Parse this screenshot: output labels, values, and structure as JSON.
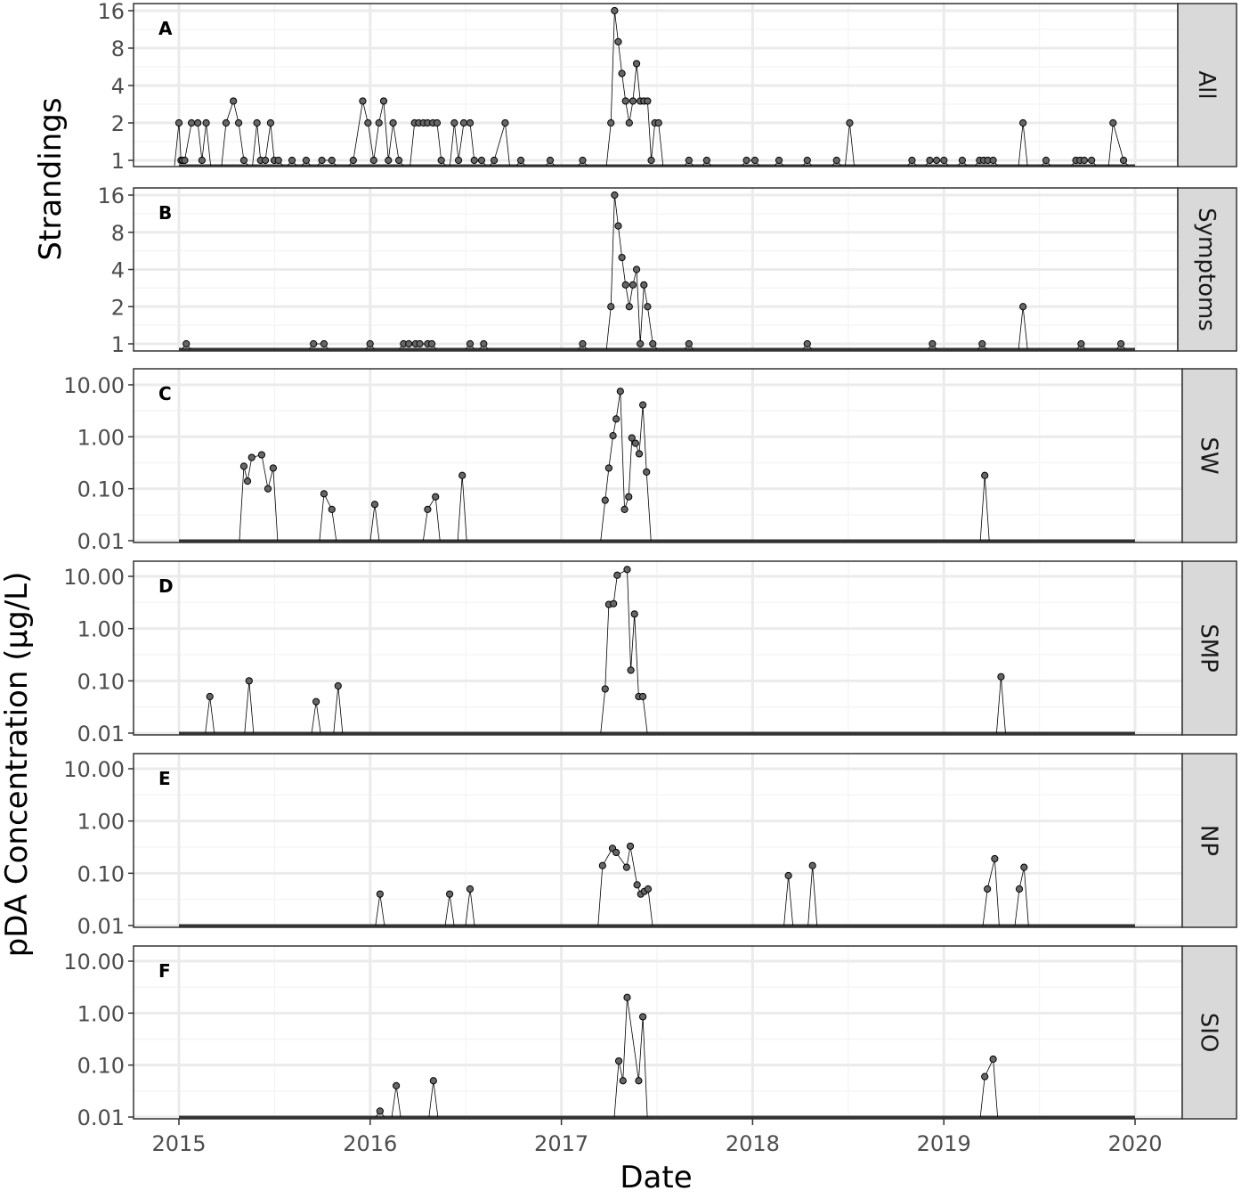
{
  "figure": {
    "strandings_ylabel": "Strandings",
    "pda_ylabel": "pDA Concentration (µg/L)",
    "xlabel": "Date",
    "x_ticks": [
      "2015",
      "2016",
      "2017",
      "2018",
      "2019",
      "2020"
    ]
  },
  "colors": {
    "panel_bg": "#ffffff",
    "grid_major": "#ebebeb",
    "grid_minor": "#f5f5f5",
    "panel_border": "#333333",
    "strip_bg": "#d9d9d9",
    "point_fill": "#666666",
    "line": "#000000"
  },
  "chart_data": [
    {
      "type": "line",
      "panel": "A",
      "facet": "All",
      "yscale": "log2",
      "ylim": [
        1,
        16
      ],
      "y_ticks": [
        "1",
        "2",
        "4",
        "8",
        "16"
      ],
      "xlim": [
        "2015-01-01",
        "2020-01-01"
      ],
      "points": [
        [
          "2015-01-01",
          2
        ],
        [
          "2015-01-05",
          1
        ],
        [
          "2015-01-08",
          1
        ],
        [
          "2015-01-12",
          1
        ],
        [
          "2015-01-25",
          2
        ],
        [
          "2015-02-06",
          2
        ],
        [
          "2015-02-14",
          1
        ],
        [
          "2015-02-22",
          2
        ],
        [
          "2015-04-01",
          2
        ],
        [
          "2015-04-15",
          3
        ],
        [
          "2015-04-25",
          2
        ],
        [
          "2015-05-05",
          1
        ],
        [
          "2015-05-30",
          2
        ],
        [
          "2015-06-06",
          1
        ],
        [
          "2015-06-15",
          1
        ],
        [
          "2015-06-25",
          2
        ],
        [
          "2015-07-02",
          1
        ],
        [
          "2015-07-10",
          1
        ],
        [
          "2015-08-05",
          1
        ],
        [
          "2015-09-01",
          1
        ],
        [
          "2015-10-01",
          1
        ],
        [
          "2015-10-20",
          1
        ],
        [
          "2015-11-30",
          1
        ],
        [
          "2015-12-18",
          3
        ],
        [
          "2015-12-28",
          2
        ],
        [
          "2016-01-08",
          1
        ],
        [
          "2016-01-18",
          2
        ],
        [
          "2016-01-27",
          3
        ],
        [
          "2016-02-05",
          1
        ],
        [
          "2016-02-14",
          2
        ],
        [
          "2016-02-25",
          1
        ],
        [
          "2016-03-26",
          2
        ],
        [
          "2016-04-03",
          2
        ],
        [
          "2016-04-12",
          2
        ],
        [
          "2016-04-20",
          2
        ],
        [
          "2016-04-30",
          2
        ],
        [
          "2016-05-08",
          2
        ],
        [
          "2016-05-16",
          1
        ],
        [
          "2016-06-10",
          2
        ],
        [
          "2016-06-18",
          1
        ],
        [
          "2016-06-28",
          2
        ],
        [
          "2016-07-10",
          2
        ],
        [
          "2016-07-18",
          1
        ],
        [
          "2016-08-01",
          1
        ],
        [
          "2016-08-25",
          1
        ],
        [
          "2016-09-15",
          2
        ],
        [
          "2016-10-15",
          1
        ],
        [
          "2016-12-10",
          1
        ],
        [
          "2017-02-10",
          1
        ],
        [
          "2017-04-05",
          2
        ],
        [
          "2017-04-12",
          16
        ],
        [
          "2017-04-19",
          9
        ],
        [
          "2017-04-26",
          5
        ],
        [
          "2017-05-03",
          3
        ],
        [
          "2017-05-10",
          2
        ],
        [
          "2017-05-17",
          3
        ],
        [
          "2017-05-24",
          6
        ],
        [
          "2017-05-31",
          3
        ],
        [
          "2017-06-07",
          3
        ],
        [
          "2017-06-14",
          3
        ],
        [
          "2017-06-21",
          1
        ],
        [
          "2017-06-28",
          2
        ],
        [
          "2017-07-05",
          2
        ],
        [
          "2017-09-01",
          1
        ],
        [
          "2017-10-05",
          1
        ],
        [
          "2017-12-20",
          1
        ],
        [
          "2018-01-05",
          1
        ],
        [
          "2018-02-20",
          1
        ],
        [
          "2018-04-15",
          1
        ],
        [
          "2018-06-10",
          1
        ],
        [
          "2018-07-05",
          2
        ],
        [
          "2018-11-01",
          1
        ],
        [
          "2018-12-05",
          1
        ],
        [
          "2018-12-18",
          1
        ],
        [
          "2019-01-01",
          1
        ],
        [
          "2019-02-05",
          1
        ],
        [
          "2019-03-10",
          1
        ],
        [
          "2019-03-18",
          1
        ],
        [
          "2019-03-26",
          1
        ],
        [
          "2019-04-05",
          1
        ],
        [
          "2019-06-01",
          2
        ],
        [
          "2019-07-15",
          1
        ],
        [
          "2019-09-10",
          1
        ],
        [
          "2019-09-18",
          1
        ],
        [
          "2019-09-26",
          1
        ],
        [
          "2019-10-10",
          1
        ],
        [
          "2019-11-20",
          2
        ],
        [
          "2019-12-10",
          1
        ]
      ]
    },
    {
      "type": "line",
      "panel": "B",
      "facet": "Symptoms",
      "yscale": "log2",
      "ylim": [
        1,
        16
      ],
      "y_ticks": [
        "1",
        "2",
        "4",
        "8",
        "16"
      ],
      "xlim": [
        "2015-01-01",
        "2020-01-01"
      ],
      "points": [
        [
          "2015-01-15",
          1
        ],
        [
          "2015-09-15",
          1
        ],
        [
          "2015-10-05",
          1
        ],
        [
          "2016-01-01",
          1
        ],
        [
          "2016-03-05",
          1
        ],
        [
          "2016-03-15",
          1
        ],
        [
          "2016-03-28",
          1
        ],
        [
          "2016-04-05",
          1
        ],
        [
          "2016-04-20",
          1
        ],
        [
          "2016-04-28",
          1
        ],
        [
          "2016-07-10",
          1
        ],
        [
          "2016-08-05",
          1
        ],
        [
          "2017-02-10",
          1
        ],
        [
          "2017-04-05",
          2
        ],
        [
          "2017-04-12",
          16
        ],
        [
          "2017-04-19",
          9
        ],
        [
          "2017-04-26",
          5
        ],
        [
          "2017-05-03",
          3
        ],
        [
          "2017-05-10",
          2
        ],
        [
          "2017-05-17",
          3
        ],
        [
          "2017-05-24",
          4
        ],
        [
          "2017-05-31",
          1
        ],
        [
          "2017-06-07",
          3
        ],
        [
          "2017-06-14",
          2
        ],
        [
          "2017-06-24",
          1
        ],
        [
          "2017-09-01",
          1
        ],
        [
          "2018-04-15",
          1
        ],
        [
          "2018-12-10",
          1
        ],
        [
          "2019-03-15",
          1
        ],
        [
          "2019-06-01",
          2
        ],
        [
          "2019-09-20",
          1
        ],
        [
          "2019-12-05",
          1
        ]
      ]
    },
    {
      "type": "line",
      "panel": "C",
      "facet": "SW",
      "yscale": "log10",
      "ylim": [
        0.01,
        10
      ],
      "y_ticks": [
        "0.01",
        "0.10",
        "1.00",
        "10.00"
      ],
      "xlim": [
        "2015-01-01",
        "2020-01-01"
      ],
      "points": [
        [
          "2015-05-05",
          0.27
        ],
        [
          "2015-05-12",
          0.14
        ],
        [
          "2015-05-20",
          0.4
        ],
        [
          "2015-06-08",
          0.45
        ],
        [
          "2015-06-20",
          0.1
        ],
        [
          "2015-06-30",
          0.25
        ],
        [
          "2015-10-05",
          0.08
        ],
        [
          "2015-10-20",
          0.04
        ],
        [
          "2016-01-10",
          0.05
        ],
        [
          "2016-04-20",
          0.04
        ],
        [
          "2016-05-05",
          0.07
        ],
        [
          "2016-06-25",
          0.18
        ],
        [
          "2017-03-25",
          0.06
        ],
        [
          "2017-04-01",
          0.25
        ],
        [
          "2017-04-09",
          1.05
        ],
        [
          "2017-04-15",
          2.2
        ],
        [
          "2017-04-23",
          7.5
        ],
        [
          "2017-05-01",
          0.04
        ],
        [
          "2017-05-09",
          0.07
        ],
        [
          "2017-05-15",
          0.95
        ],
        [
          "2017-05-22",
          0.75
        ],
        [
          "2017-05-29",
          0.47
        ],
        [
          "2017-06-05",
          4.1
        ],
        [
          "2017-06-12",
          0.21
        ],
        [
          "2019-03-20",
          0.18
        ]
      ]
    },
    {
      "type": "line",
      "panel": "D",
      "facet": "SMP",
      "yscale": "log10",
      "ylim": [
        0.01,
        10
      ],
      "y_ticks": [
        "0.01",
        "0.10",
        "1.00",
        "10.00"
      ],
      "xlim": [
        "2015-01-01",
        "2020-01-01"
      ],
      "points": [
        [
          "2015-03-01",
          0.05
        ],
        [
          "2015-05-15",
          0.1
        ],
        [
          "2015-09-20",
          0.04
        ],
        [
          "2015-11-01",
          0.08
        ],
        [
          "2017-03-25",
          0.07
        ],
        [
          "2017-04-01",
          2.9
        ],
        [
          "2017-04-10",
          3.0
        ],
        [
          "2017-04-17",
          10.5
        ],
        [
          "2017-05-06",
          13.5
        ],
        [
          "2017-05-13",
          0.16
        ],
        [
          "2017-05-20",
          1.9
        ],
        [
          "2017-05-28",
          0.05
        ],
        [
          "2017-06-05",
          0.05
        ],
        [
          "2019-04-20",
          0.12
        ]
      ]
    },
    {
      "type": "line",
      "panel": "E",
      "facet": "NP",
      "yscale": "log10",
      "ylim": [
        0.01,
        10
      ],
      "y_ticks": [
        "0.01",
        "0.10",
        "1.00",
        "10.00"
      ],
      "xlim": [
        "2015-01-01",
        "2020-01-01"
      ],
      "points": [
        [
          "2016-01-20",
          0.04
        ],
        [
          "2016-06-01",
          0.04
        ],
        [
          "2016-07-10",
          0.05
        ],
        [
          "2017-03-20",
          0.14
        ],
        [
          "2017-04-08",
          0.3
        ],
        [
          "2017-04-15",
          0.25
        ],
        [
          "2017-05-05",
          0.13
        ],
        [
          "2017-05-12",
          0.33
        ],
        [
          "2017-05-25",
          0.06
        ],
        [
          "2017-06-01",
          0.04
        ],
        [
          "2017-06-08",
          0.045
        ],
        [
          "2017-06-15",
          0.05
        ],
        [
          "2018-03-10",
          0.09
        ],
        [
          "2018-04-25",
          0.14
        ],
        [
          "2019-03-25",
          0.05
        ],
        [
          "2019-04-08",
          0.19
        ],
        [
          "2019-05-25",
          0.05
        ],
        [
          "2019-06-03",
          0.13
        ]
      ]
    },
    {
      "type": "line",
      "panel": "F",
      "facet": "SIO",
      "yscale": "log10",
      "ylim": [
        0.01,
        10
      ],
      "y_ticks": [
        "0.01",
        "0.10",
        "1.00",
        "10.00"
      ],
      "xlim": [
        "2015-01-01",
        "2020-01-01"
      ],
      "points": [
        [
          "2016-01-20",
          0.013
        ],
        [
          "2016-02-20",
          0.04
        ],
        [
          "2016-05-01",
          0.05
        ],
        [
          "2017-04-20",
          0.12
        ],
        [
          "2017-04-28",
          0.05
        ],
        [
          "2017-05-06",
          2.0
        ],
        [
          "2017-05-28",
          0.05
        ],
        [
          "2017-06-05",
          0.85
        ],
        [
          "2019-03-20",
          0.06
        ],
        [
          "2019-04-05",
          0.13
        ]
      ]
    }
  ]
}
